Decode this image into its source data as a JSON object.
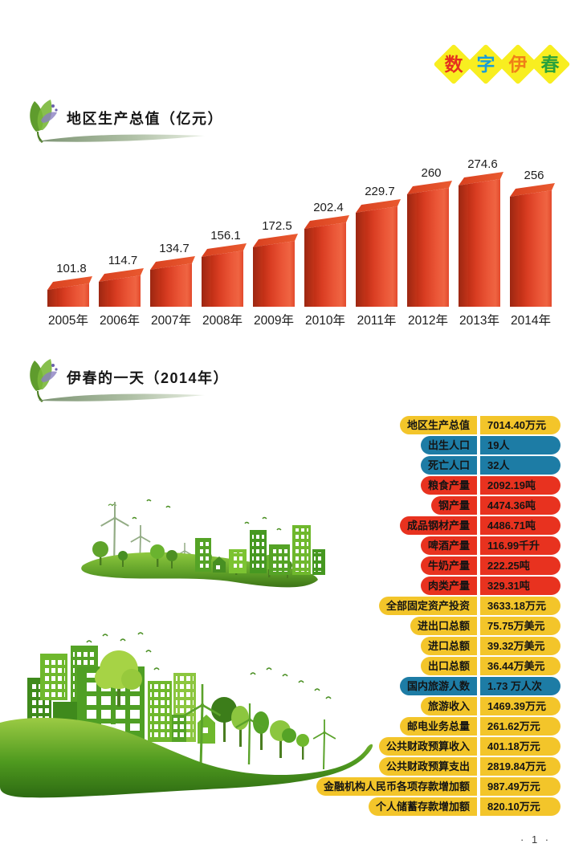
{
  "masthead": {
    "text": "数字伊春",
    "diamond_color": "#f8ee20",
    "characters": [
      {
        "char": "数",
        "color": "#e5301f"
      },
      {
        "char": "字",
        "color": "#199cd8"
      },
      {
        "char": "伊",
        "color": "#ef7f17"
      },
      {
        "char": "春",
        "color": "#2aa23c"
      }
    ]
  },
  "section1": {
    "title": "地区生产总值（亿元）"
  },
  "section2": {
    "title": "伊春的一天（2014年）"
  },
  "chart_data": {
    "type": "bar",
    "title": "地区生产总值（亿元）",
    "categories": [
      "2005年",
      "2006年",
      "2007年",
      "2008年",
      "2009年",
      "2010年",
      "2011年",
      "2012年",
      "2013年",
      "2014年"
    ],
    "values": [
      101.8,
      114.7,
      134.7,
      156.1,
      172.5,
      202.4,
      229.7,
      260,
      274.6,
      256
    ],
    "value_labels": [
      "101.8",
      "114.7",
      "134.7",
      "156.1",
      "172.5",
      "202.4",
      "229.7",
      "260",
      "274.6",
      "256"
    ],
    "xlabel": "",
    "ylabel": "",
    "grid": false,
    "legend": false,
    "axes_visible": false,
    "bar_style": "3d-red",
    "bar_color": "#e04328",
    "data_labels_position": "above bars"
  },
  "stats_table": {
    "colors": {
      "yellow": "#f3c52a",
      "blue": "#1d7ca5",
      "red": "#e8321f"
    },
    "rows": [
      {
        "label": "地区生产总值",
        "value": "7014.40万元",
        "color": "yellow"
      },
      {
        "label": "出生人口",
        "value": "19人",
        "color": "blue"
      },
      {
        "label": "死亡人口",
        "value": "32人",
        "color": "blue"
      },
      {
        "label": "粮食产量",
        "value": "2092.19吨",
        "color": "red"
      },
      {
        "label": "钢产量",
        "value": "4474.36吨",
        "color": "red"
      },
      {
        "label": "成品钢材产量",
        "value": "4486.71吨",
        "color": "red"
      },
      {
        "label": "啤酒产量",
        "value": "116.99千升",
        "color": "red"
      },
      {
        "label": "牛奶产量",
        "value": "222.25吨",
        "color": "red"
      },
      {
        "label": "肉类产量",
        "value": "329.31吨",
        "color": "red"
      },
      {
        "label": "全部固定资产投资",
        "value": "3633.18万元",
        "color": "yellow"
      },
      {
        "label": "进出口总额",
        "value": "75.75万美元",
        "color": "yellow"
      },
      {
        "label": "进口总额",
        "value": "39.32万美元",
        "color": "yellow"
      },
      {
        "label": "出口总额",
        "value": "36.44万美元",
        "color": "yellow"
      },
      {
        "label": "国内旅游人数",
        "value": "1.73 万人次",
        "color": "blue"
      },
      {
        "label": "旅游收入",
        "value": "1469.39万元",
        "color": "yellow"
      },
      {
        "label": "邮电业务总量",
        "value": "261.62万元",
        "color": "yellow"
      },
      {
        "label": "公共财政预算收入",
        "value": "401.18万元",
        "color": "yellow"
      },
      {
        "label": "公共财政预算支出",
        "value": "2819.84万元",
        "color": "yellow"
      },
      {
        "label": "金融机构人民币各项存款增加额",
        "value": "987.49万元",
        "color": "yellow"
      },
      {
        "label": "个人储蓄存款增加额",
        "value": "820.10万元",
        "color": "yellow"
      }
    ]
  },
  "footer": {
    "page_number": "· 1 ·"
  }
}
